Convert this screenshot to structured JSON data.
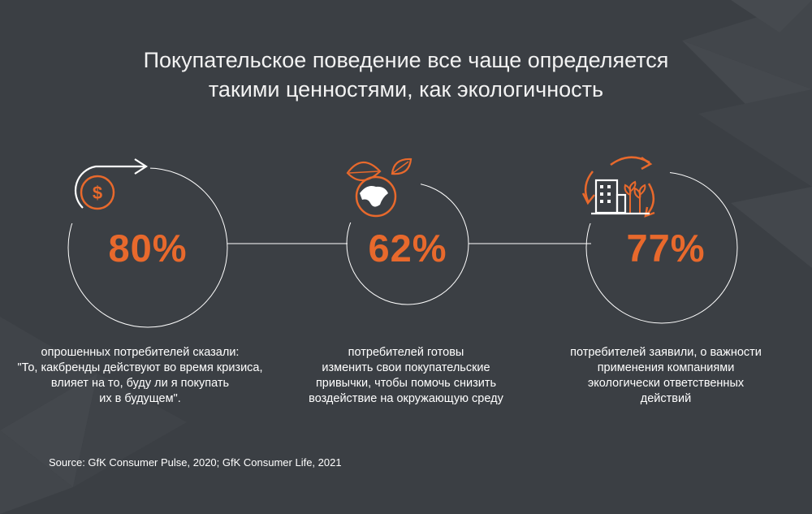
{
  "title": {
    "line1": "Покупательское поведение все чаще определяется",
    "line2": "такими ценностями, как экологичность"
  },
  "colors": {
    "background": "#3b3f44",
    "accent": "#e8692c",
    "text": "#ffffff",
    "circle_stroke": "#ffffff"
  },
  "stats": [
    {
      "value": "80%",
      "icon": "dollar-arrow-icon",
      "desc": [
        "опрошенных потребителей сказали:",
        "\"То, какбренды действуют во время кризиса,",
        "влияет на то, буду ли я покупать",
        "их в будущем\"."
      ]
    },
    {
      "value": "62%",
      "icon": "globe-leaf-icon",
      "desc": [
        "потребителей готовы",
        "изменить свои покупательские",
        "привычки, чтобы помочь снизить",
        "воздействие на окружающую среду"
      ]
    },
    {
      "value": "77%",
      "icon": "eco-building-icon",
      "desc": [
        "потребителей заявили, о важности",
        "применения компаниями",
        "экологически ответственных",
        "действий"
      ]
    }
  ],
  "source": "Source: GfK Consumer Pulse, 2020; GfK Consumer Life, 2021"
}
